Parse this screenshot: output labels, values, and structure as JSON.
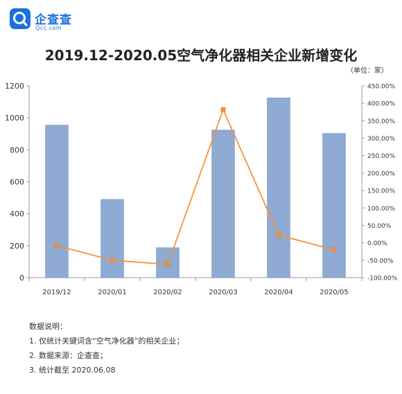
{
  "logo": {
    "name": "企查查",
    "domain": "Qcc.com",
    "icon": "magnifier-q-icon",
    "color": "#1d6fe0"
  },
  "title": "2019.12-2020.05空气净化器相关企业新增变化",
  "unit": "（单位：家）",
  "notes": {
    "heading": "数据说明：",
    "items": [
      "1. 仅统计关键词含“空气净化器”的相关企业；",
      "2. 数据来源：企查查；",
      "3. 统计截至 2020.06.08"
    ]
  },
  "chart_data": {
    "type": "bar",
    "categories": [
      "2019/12",
      "2020/01",
      "2020/02",
      "2020/03",
      "2020/04",
      "2020/05"
    ],
    "series": [
      {
        "values": [
          955,
          490,
          188,
          924,
          1125,
          903
        ],
        "color": "#8faad3",
        "axis": "left",
        "kind": "bar"
      },
      {
        "values": [
          -8,
          -50,
          -62,
          382,
          22,
          -20
        ],
        "color": "#f5923e",
        "axis": "right",
        "kind": "line",
        "unit": "%"
      }
    ],
    "left_axis": {
      "ylim": [
        0,
        1200
      ],
      "ticks": [
        "0",
        "200",
        "400",
        "600",
        "800",
        "1000",
        "1200"
      ]
    },
    "right_axis": {
      "ylim": [
        -100,
        450
      ],
      "ticks": [
        "-100.00%",
        "-50.00%",
        "0.00%",
        "50.00%",
        "100.00%",
        "150.00%",
        "200.00%",
        "250.00%",
        "300.00%",
        "350.00%",
        "400.00%",
        "450.00%"
      ]
    },
    "grid": false,
    "legend": "none"
  }
}
